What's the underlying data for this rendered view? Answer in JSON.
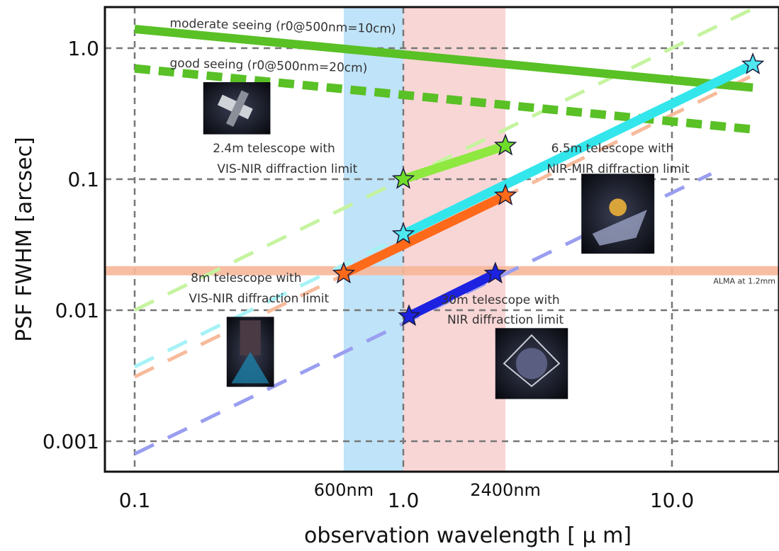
{
  "chart_data": {
    "type": "line",
    "title": "",
    "xlabel": "observation wavelength [ μ m]",
    "ylabel": "PSF FWHM [arcsec]",
    "x_scale": "log",
    "y_scale": "log",
    "xlim": [
      0.08,
      30
    ],
    "ylim": [
      0.0005,
      3
    ],
    "x_ticks": [
      0.1,
      1.0,
      10.0
    ],
    "x_tick_labels": [
      "0.1",
      "1.0",
      "10.0"
    ],
    "y_ticks": [
      0.001,
      0.01,
      0.1,
      1.0
    ],
    "y_tick_labels": [
      "0.001",
      "0.01",
      "0.1",
      "1.0"
    ],
    "extra_x_labels": [
      {
        "x": 0.6,
        "label": "600nm"
      },
      {
        "x": 2.4,
        "label": "2400nm"
      }
    ],
    "grid": true,
    "bands": [
      {
        "name": "visible-band",
        "x0": 0.6,
        "x1": 1.0,
        "color": "#bfe3f8"
      },
      {
        "name": "nir-band",
        "x0": 1.0,
        "x1": 2.4,
        "color": "#f9d6d6"
      }
    ],
    "hlines": [
      {
        "name": "alma-line",
        "y": 0.02,
        "label": "ALMA at 1.2mm",
        "color": "#f7b89a"
      }
    ],
    "series": [
      {
        "name": "moderate seeing (r0@500nm=10cm)",
        "style": "solid",
        "color": "#59c026",
        "x": [
          0.1,
          20
        ],
        "y": [
          1.4,
          0.5
        ]
      },
      {
        "name": "good seeing (r0@500nm=20cm)",
        "style": "dotted",
        "color": "#59c026",
        "x": [
          0.1,
          20
        ],
        "y": [
          0.7,
          0.24
        ]
      },
      {
        "name": "2.4m telescope with VIS-NIR diffraction limit",
        "style": "solid",
        "color": "#8ee840",
        "x": [
          1.0,
          2.4
        ],
        "y": [
          0.1,
          0.18
        ]
      },
      {
        "name": "8m telescope with VIS-NIR diffraction limit",
        "style": "solid",
        "color": "#ff6a1a",
        "x": [
          0.6,
          2.4
        ],
        "y": [
          0.019,
          0.075
        ]
      },
      {
        "name": "6.5m telescope with NIR-MIR diffraction limit",
        "style": "solid",
        "color": "#33e6ec",
        "x": [
          1.0,
          20
        ],
        "y": [
          0.038,
          0.75
        ]
      },
      {
        "name": "30m telescope with NIR diffraction limit",
        "style": "solid",
        "color": "#1c22e0",
        "x": [
          1.05,
          2.2
        ],
        "y": [
          0.009,
          0.019
        ]
      }
    ],
    "extrapolations": [
      {
        "color": "#c6f3a0",
        "x": [
          0.1,
          20
        ],
        "y": [
          0.01,
          2.0
        ]
      },
      {
        "color": "#a6f2f6",
        "x": [
          0.1,
          20
        ],
        "y": [
          0.0037,
          0.74
        ]
      },
      {
        "color": "#f6bb9c",
        "x": [
          0.1,
          20
        ],
        "y": [
          0.0031,
          0.62
        ]
      },
      {
        "color": "#9a9ef0",
        "x": [
          0.1,
          14
        ],
        "y": [
          0.0008,
          0.11
        ]
      }
    ],
    "markers": [
      {
        "x": 1.0,
        "y": 0.1,
        "color": "#6fdc2a"
      },
      {
        "x": 2.4,
        "y": 0.18,
        "color": "#6fdc2a"
      },
      {
        "x": 1.0,
        "y": 0.038,
        "color": "#4fe8f0"
      },
      {
        "x": 20,
        "y": 0.75,
        "color": "#4fe8f0"
      },
      {
        "x": 0.6,
        "y": 0.019,
        "color": "#ff6a1a"
      },
      {
        "x": 2.4,
        "y": 0.075,
        "color": "#ff6a1a"
      },
      {
        "x": 1.05,
        "y": 0.009,
        "color": "#1c22e0"
      },
      {
        "x": 2.2,
        "y": 0.019,
        "color": "#1c22e0"
      }
    ],
    "annotations": [
      {
        "name": "moderate-seeing-label",
        "x": 0.135,
        "y": 1.45,
        "text": "moderate seeing (r0@500nm=10cm)"
      },
      {
        "name": "good-seeing-label",
        "x": 0.135,
        "y": 0.72,
        "text": "good seeing (r0@500nm=20cm)"
      },
      {
        "name": "telescope-24-label-1",
        "x": 0.33,
        "y": 0.16,
        "text": "2.4m telescope with",
        "anchor": "middle"
      },
      {
        "name": "telescope-24-label-2",
        "x": 0.37,
        "y": 0.112,
        "text": "VIS-NIR diffraction limit",
        "anchor": "middle"
      },
      {
        "name": "telescope-65-label-1",
        "x": 6.0,
        "y": 0.16,
        "text": "6.5m telescope with",
        "anchor": "middle"
      },
      {
        "name": "telescope-65-label-2",
        "x": 6.3,
        "y": 0.112,
        "text": "NIR-MIR diffraction limit",
        "anchor": "middle"
      },
      {
        "name": "telescope-8-label-1",
        "x": 0.26,
        "y": 0.0165,
        "text": "8m telescope with",
        "anchor": "middle"
      },
      {
        "name": "telescope-8-label-2",
        "x": 0.29,
        "y": 0.0115,
        "text": "VIS-NIR diffraction limit",
        "anchor": "middle"
      },
      {
        "name": "telescope-30-label-1",
        "x": 2.3,
        "y": 0.0112,
        "text": "30m telescope with",
        "anchor": "middle"
      },
      {
        "name": "telescope-30-label-2",
        "x": 2.4,
        "y": 0.0079,
        "text": "NIR diffraction limit",
        "anchor": "middle"
      }
    ],
    "images": [
      {
        "name": "hubble-telescope-image",
        "x0": 0.18,
        "x1": 0.32,
        "y0": 0.22,
        "y1": 0.55
      },
      {
        "name": "jwst-telescope-image",
        "x0": 4.6,
        "x1": 8.6,
        "y0": 0.027,
        "y1": 0.11
      },
      {
        "name": "eso-8m-telescope-image",
        "x0": 0.22,
        "x1": 0.33,
        "y0": 0.0026,
        "y1": 0.0089
      },
      {
        "name": "tmt-30m-telescope-image",
        "x0": 2.2,
        "x1": 4.1,
        "y0": 0.0021,
        "y1": 0.0073
      }
    ]
  }
}
